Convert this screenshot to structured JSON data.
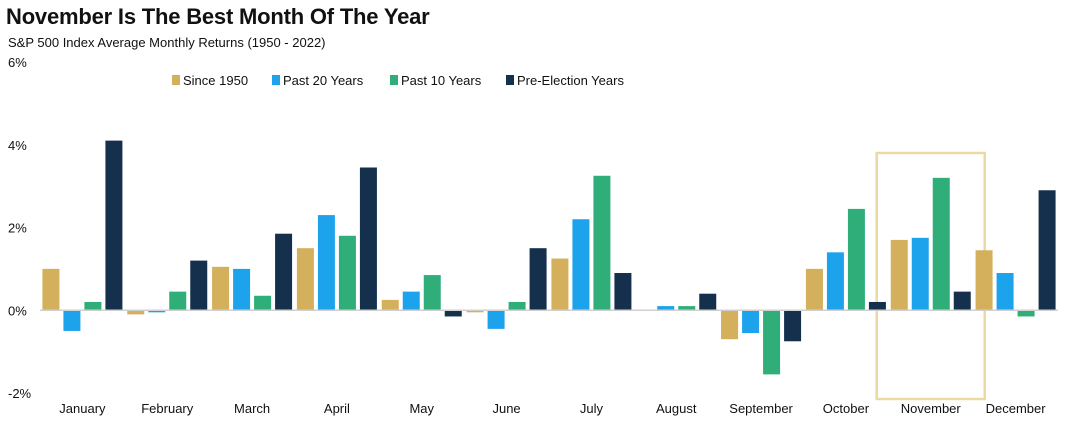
{
  "title": "November Is The Best Month Of The Year",
  "subtitle": "S&P 500 Index Average Monthly Returns (1950 - 2022)",
  "colors": {
    "since_1950": "#d4b05c",
    "past_20": "#1ca3ec",
    "past_10": "#2fae7a",
    "pre_election": "#15304d",
    "highlight": "#ead9a3",
    "zero_line": "#d0d0d0"
  },
  "chart_data": {
    "type": "bar",
    "categories": [
      "January",
      "February",
      "March",
      "April",
      "May",
      "June",
      "July",
      "August",
      "September",
      "October",
      "November",
      "December"
    ],
    "series": [
      {
        "name": "Since 1950",
        "color_key": "since_1950",
        "values": [
          1.0,
          -0.1,
          1.05,
          1.5,
          0.25,
          -0.05,
          1.25,
          0.0,
          -0.7,
          1.0,
          1.7,
          1.45
        ]
      },
      {
        "name": "Past 20 Years",
        "color_key": "past_20",
        "values": [
          -0.5,
          -0.05,
          1.0,
          2.3,
          0.45,
          -0.45,
          2.2,
          0.1,
          -0.55,
          1.4,
          1.75,
          0.9
        ]
      },
      {
        "name": "Past 10 Years",
        "color_key": "past_10",
        "values": [
          0.2,
          0.45,
          0.35,
          1.8,
          0.85,
          0.2,
          3.25,
          0.1,
          -1.55,
          2.45,
          3.2,
          -0.15
        ]
      },
      {
        "name": "Pre-Election Years",
        "color_key": "pre_election",
        "values": [
          4.1,
          1.2,
          1.85,
          3.45,
          -0.15,
          1.5,
          0.9,
          0.4,
          -0.75,
          0.2,
          0.45,
          2.9
        ]
      }
    ],
    "ylim": [
      -2,
      6
    ],
    "yticks": [
      -2,
      0,
      2,
      4,
      6
    ],
    "ytick_labels": [
      "-2%",
      "0%",
      "2%",
      "4%",
      "6%"
    ],
    "highlight_category": "November",
    "legend_position": "top-center",
    "grid": false
  }
}
